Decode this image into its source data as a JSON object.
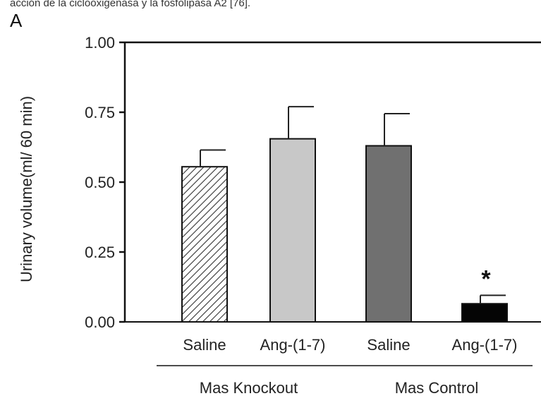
{
  "caption_text": "acción de la ciclooxigenasa y la fosfolipasa A2 [76].",
  "chart_data": {
    "type": "bar",
    "panel_label": "A",
    "ylabel": "Urinary volume(ml/ 60 min)",
    "ylim": [
      0,
      1.0
    ],
    "yticks": [
      "0.00",
      "0.25",
      "0.50",
      "0.75",
      "1.00"
    ],
    "ytick_values": [
      0,
      0.25,
      0.5,
      0.75,
      1.0
    ],
    "categories": [
      "Saline",
      "Ang-(1-7)",
      "Saline",
      "Ang-(1-7)"
    ],
    "values": [
      0.555,
      0.655,
      0.63,
      0.065
    ],
    "errors": [
      0.06,
      0.115,
      0.115,
      0.03
    ],
    "bar_styles": [
      "hatched",
      "light-gray",
      "dark-gray",
      "black"
    ],
    "bar_colors": [
      "#ffffff",
      "#c8c8c8",
      "#707070",
      "#050505"
    ],
    "annotations": [
      {
        "category_index": 3,
        "text": "*"
      }
    ],
    "groups": [
      {
        "label": "Mas Knockout",
        "categories": [
          0,
          1
        ]
      },
      {
        "label": "Mas Control",
        "categories": [
          2,
          3
        ]
      }
    ]
  }
}
